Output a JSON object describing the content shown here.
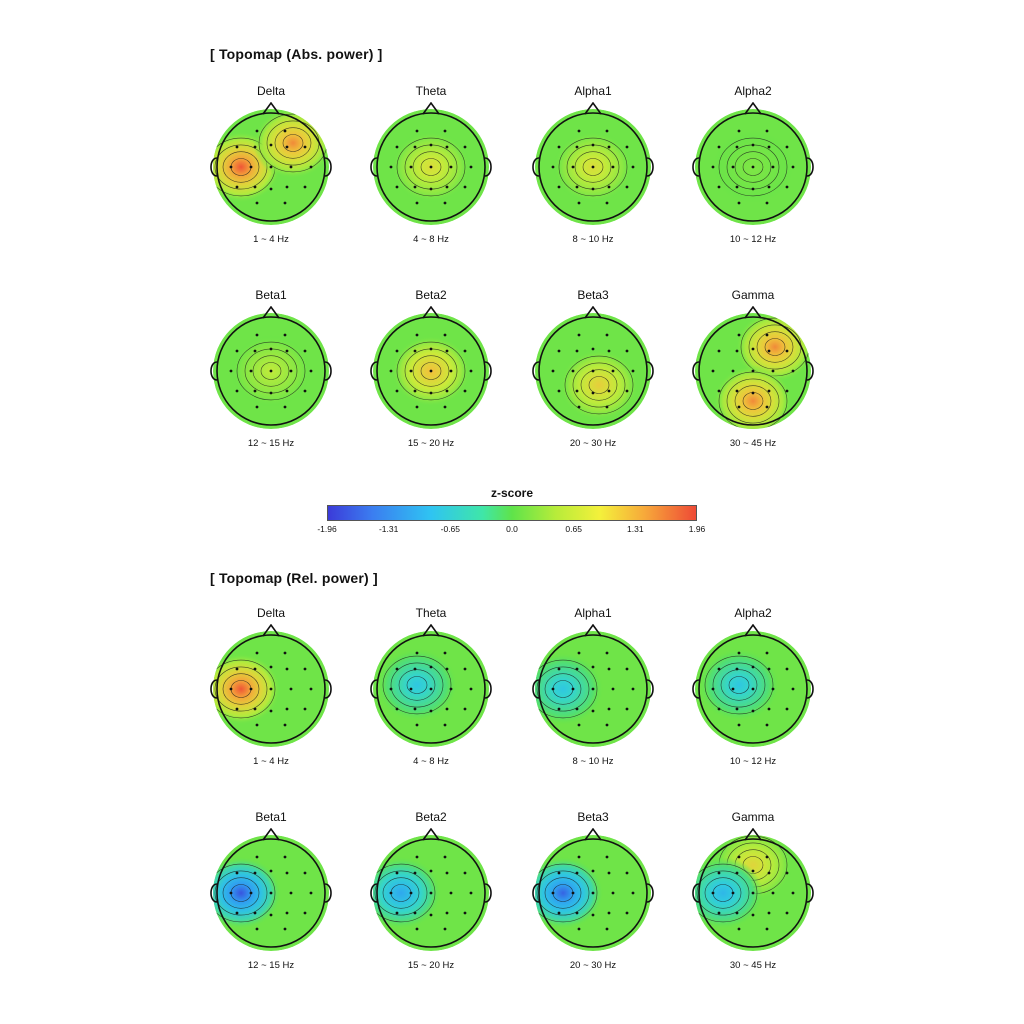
{
  "abs_title": "[ Topomap (Abs. power) ]",
  "rel_title": "[ Topomap (Rel. power) ]",
  "colorbar": {
    "title": "z-score",
    "ticks": [
      "-1.96",
      "-1.31",
      "-0.65",
      "0.0",
      "0.65",
      "1.31",
      "1.96"
    ],
    "colors": [
      "#3b3bd9",
      "#2fc4f2",
      "#5fe34a",
      "#f4f03b",
      "#ee4a36"
    ]
  },
  "abs_maps": [
    {
      "band": "Delta",
      "range": "1 ~ 4 Hz",
      "blobs": [
        {
          "pos": "left",
          "z": 1.9
        },
        {
          "pos": "right-front",
          "z": 1.6
        }
      ]
    },
    {
      "band": "Theta",
      "range": "4 ~ 8 Hz",
      "blobs": [
        {
          "pos": "center",
          "z": 0.9
        }
      ]
    },
    {
      "band": "Alpha1",
      "range": "8 ~ 10 Hz",
      "blobs": [
        {
          "pos": "center",
          "z": 0.9
        }
      ]
    },
    {
      "band": "Alpha2",
      "range": "10 ~ 12 Hz",
      "blobs": [
        {
          "pos": "center",
          "z": 0.2
        }
      ]
    },
    {
      "band": "Beta1",
      "range": "12 ~ 15 Hz",
      "blobs": [
        {
          "pos": "center",
          "z": 0.6
        }
      ]
    },
    {
      "band": "Beta2",
      "range": "15 ~ 20 Hz",
      "blobs": [
        {
          "pos": "center",
          "z": 1.3
        }
      ]
    },
    {
      "band": "Beta3",
      "range": "20 ~ 30 Hz",
      "blobs": [
        {
          "pos": "center-back",
          "z": 1.1
        }
      ]
    },
    {
      "band": "Gamma",
      "range": "30 ~ 45 Hz",
      "blobs": [
        {
          "pos": "right-front",
          "z": 1.6
        },
        {
          "pos": "back",
          "z": 1.6
        }
      ]
    }
  ],
  "rel_maps": [
    {
      "band": "Delta",
      "range": "1 ~ 4 Hz",
      "blobs": [
        {
          "pos": "left",
          "z": 1.9
        }
      ]
    },
    {
      "band": "Theta",
      "range": "4 ~ 8 Hz",
      "blobs": [
        {
          "pos": "left-center",
          "z": -0.8
        }
      ]
    },
    {
      "band": "Alpha1",
      "range": "8 ~ 10 Hz",
      "blobs": [
        {
          "pos": "left",
          "z": -0.8
        }
      ]
    },
    {
      "band": "Alpha2",
      "range": "10 ~ 12 Hz",
      "blobs": [
        {
          "pos": "left-center",
          "z": -0.8
        }
      ]
    },
    {
      "band": "Beta1",
      "range": "12 ~ 15 Hz",
      "blobs": [
        {
          "pos": "left",
          "z": -1.8
        }
      ]
    },
    {
      "band": "Beta2",
      "range": "15 ~ 20 Hz",
      "blobs": [
        {
          "pos": "left",
          "z": -1.2
        }
      ]
    },
    {
      "band": "Beta3",
      "range": "20 ~ 30 Hz",
      "blobs": [
        {
          "pos": "left",
          "z": -1.7
        }
      ]
    },
    {
      "band": "Gamma",
      "range": "30 ~ 45 Hz",
      "blobs": [
        {
          "pos": "front",
          "z": 1.0
        },
        {
          "pos": "left",
          "z": -1.0
        }
      ]
    }
  ]
}
